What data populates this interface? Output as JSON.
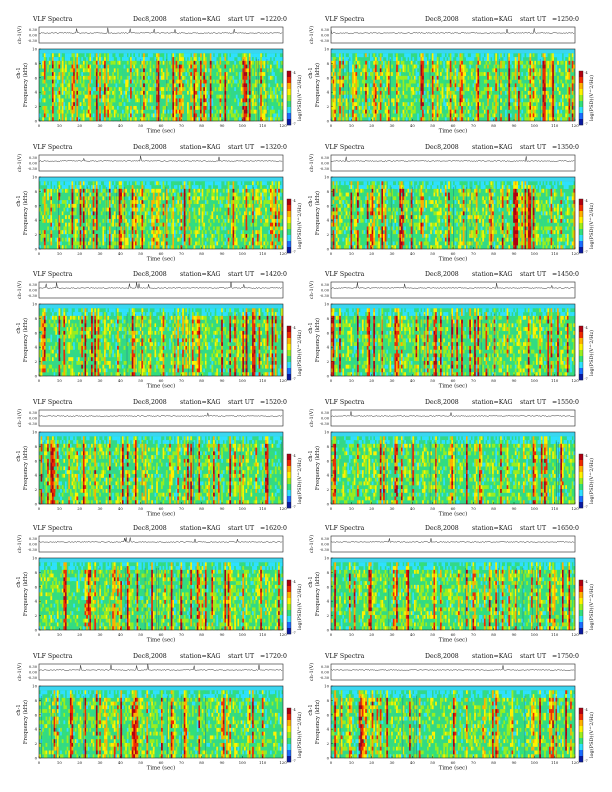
{
  "chart_data": {
    "type": "heatmap",
    "common": {
      "title": "VLF Spectra",
      "date": "Dec8,2008",
      "station_text": "station=KAG",
      "start_label": "start  UT",
      "ch_label": "ch-1(V)",
      "ch_ticks": [
        "0.30",
        "0.00",
        "-0.30"
      ],
      "ylabel": "Frequency  (kHz)",
      "ylabel_prefix": "ch-1",
      "yticks": [
        "0",
        "2",
        "4",
        "6",
        "8",
        "10"
      ],
      "ylim": [
        0,
        10
      ],
      "xlabel": "Time  (sec)",
      "xticks": [
        "0",
        "10",
        "20",
        "30",
        "40",
        "50",
        "60",
        "70",
        "80",
        "90",
        "100",
        "110",
        "120"
      ],
      "xlim": [
        0,
        120
      ],
      "colorbar_label": "log(PSD)(V^2/Hz)",
      "colorbar_ticks": [
        "-4",
        "-7"
      ],
      "colors": [
        "#0a1aa0",
        "#1a6cff",
        "#2ee0ff",
        "#33e07a",
        "#9aee1e",
        "#fff200",
        "#ffb000",
        "#f02a00",
        "#b00010"
      ]
    },
    "panels": [
      {
        "start_ut": "=1220:0"
      },
      {
        "start_ut": "=1250:0"
      },
      {
        "start_ut": "=1320:0"
      },
      {
        "start_ut": "=1350:0"
      },
      {
        "start_ut": "=1420:0"
      },
      {
        "start_ut": "=1450:0"
      },
      {
        "start_ut": "=1520:0"
      },
      {
        "start_ut": "=1550:0"
      },
      {
        "start_ut": "=1620:0"
      },
      {
        "start_ut": "=1650:0"
      },
      {
        "start_ut": "=1720:0"
      },
      {
        "start_ut": "=1750:0"
      }
    ]
  }
}
